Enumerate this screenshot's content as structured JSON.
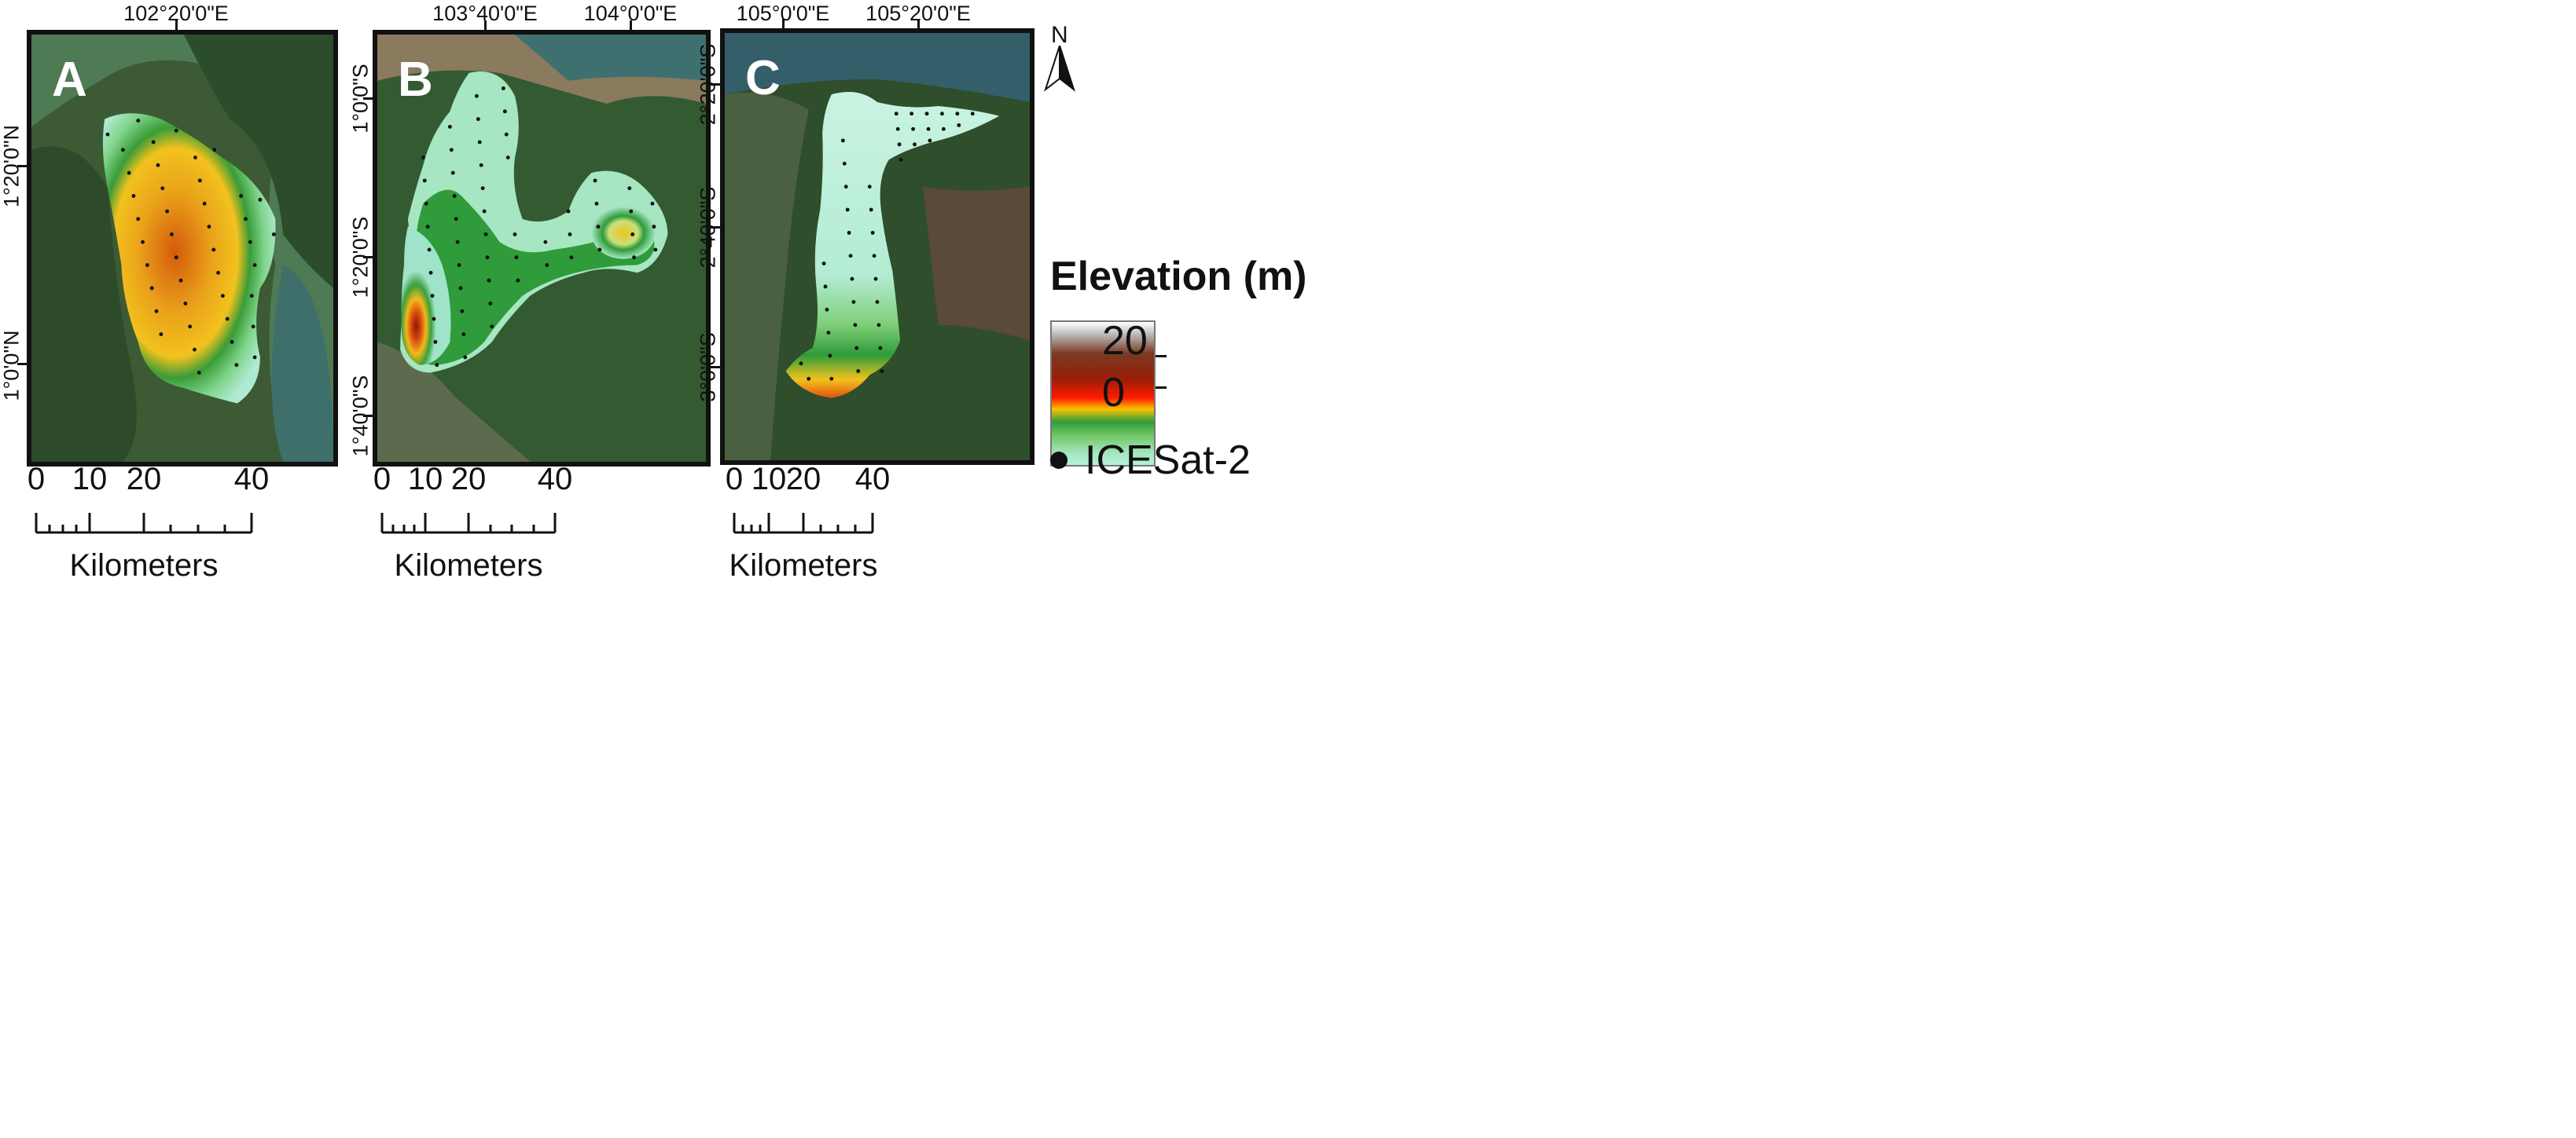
{
  "panels": [
    {
      "label": "A",
      "top_coords": [
        "102°20'0\"E"
      ],
      "left_coords": [
        "1°20'0\"N",
        "1°0'0\"N"
      ],
      "scale": {
        "numbers": [
          "0",
          "10",
          "20",
          "40"
        ],
        "unit": "Kilometers"
      }
    },
    {
      "label": "B",
      "top_coords": [
        "103°40'0\"E",
        "104°0'0\"E"
      ],
      "left_coords": [
        "1°0'0\"S",
        "1°20'0\"S",
        "1°40'0\"S"
      ],
      "scale": {
        "numbers": [
          "0",
          "10",
          "20",
          "40"
        ],
        "unit": "Kilometers"
      }
    },
    {
      "label": "C",
      "top_coords": [
        "105°0'0\"E",
        "105°20'0\"E"
      ],
      "left_coords": [
        "2°20'0\"S",
        "2°40'0\"S",
        "3°0'0\"S"
      ],
      "scale": {
        "numbers": [
          "0",
          "10",
          "20",
          "40"
        ],
        "unit": "Kilometers"
      }
    }
  ],
  "north_arrow": {
    "label": "N"
  },
  "legend": {
    "title": "Elevation (m)",
    "max": "20",
    "min": "0",
    "colors": [
      "#ffffff",
      "#7a3a22",
      "#ff1a00",
      "#f7c400",
      "#2f9b3a",
      "#75c969",
      "#b6f0d8"
    ],
    "points_label": "ICESat-2"
  }
}
